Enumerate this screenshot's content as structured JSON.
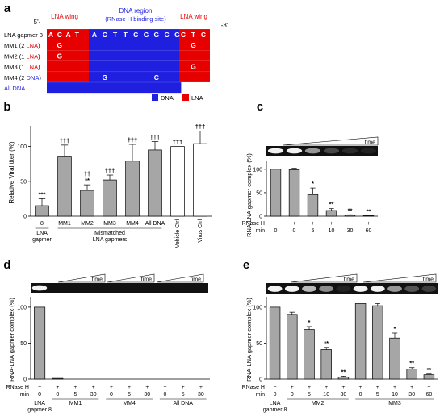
{
  "colors": {
    "dna": "#1f1fe0",
    "lna": "#e60000",
    "bar": "#a6a6a6",
    "white": "#ffffff",
    "axis": "#000000",
    "star": "#000000",
    "redtext": "#e60000",
    "bluetext": "#1f1fe0",
    "gel": "#111111",
    "band": "#f2f2f2"
  },
  "panel_a": {
    "label": "a",
    "five_prime": "5'-",
    "three_prime": "-3'",
    "lna_wing_label": "LNA wing",
    "dna_region_label": "DNA region",
    "dna_region_sub": "(RNase H binding site)",
    "sequence": [
      "A",
      "C",
      "A",
      "T",
      "A",
      "C",
      "T",
      "T",
      "C",
      "G",
      "G",
      "C",
      "G",
      "C",
      "T",
      "C"
    ],
    "rows": [
      {
        "label": "LNA gapmer 8",
        "parts": [
          {
            "t": "LNA gapmer 8",
            "c": "black"
          }
        ],
        "mutations": {}
      },
      {
        "label": "MM1 (2 LNA)",
        "parts": [
          {
            "t": "MM1 (2 ",
            "c": "black"
          },
          {
            "t": "LNA",
            "c": "red"
          },
          {
            "t": ")",
            "c": "black"
          }
        ],
        "mutations": {
          "1": "G",
          "14": "G"
        }
      },
      {
        "label": "MM2 (1 LNA)",
        "parts": [
          {
            "t": "MM2 (1 ",
            "c": "black"
          },
          {
            "t": "LNA",
            "c": "red"
          },
          {
            "t": ")",
            "c": "black"
          }
        ],
        "mutations": {
          "1": "G"
        }
      },
      {
        "label": "MM3 (1 LNA)",
        "parts": [
          {
            "t": "MM3 (1 ",
            "c": "black"
          },
          {
            "t": "LNA",
            "c": "red"
          },
          {
            "t": ")",
            "c": "black"
          }
        ],
        "mutations": {
          "14": "G"
        }
      },
      {
        "label": "MM4 (2 DNA)",
        "parts": [
          {
            "t": "MM4 (2 ",
            "c": "black"
          },
          {
            "t": "DNA",
            "c": "blue"
          },
          {
            "t": ")",
            "c": "black"
          }
        ],
        "mutations": {
          "5": "G",
          "10": "C"
        }
      },
      {
        "label": "All DNA",
        "parts": [
          {
            "t": "All DNA",
            "c": "blue"
          }
        ],
        "mutations": {}
      }
    ],
    "legend": [
      {
        "label": "DNA",
        "color_key": "dna"
      },
      {
        "label": "LNA",
        "color_key": "lna"
      }
    ]
  },
  "chart_data": [
    {
      "panel": "b",
      "type": "bar",
      "ylabel": "Relative Viral titer (%)",
      "ylim": [
        0,
        125
      ],
      "yticks": [
        0,
        50,
        100
      ],
      "categories": [
        "8",
        "MM1",
        "MM2",
        "MM3",
        "MM4",
        "All DNA",
        "Vehicle Ctrl",
        "Virus Ctrl"
      ],
      "values": [
        15,
        85,
        37,
        52,
        79,
        95,
        100,
        104
      ],
      "errors": [
        10,
        17,
        8,
        7,
        24,
        12,
        0,
        18
      ],
      "fills": [
        "bar",
        "bar",
        "bar",
        "bar",
        "bar",
        "bar",
        "white",
        "white"
      ],
      "annotations": [
        [
          "***"
        ],
        [
          "†††"
        ],
        [
          "††",
          "**"
        ],
        [
          "†††"
        ],
        [
          "†††"
        ],
        [
          "†††"
        ],
        [
          "†††"
        ],
        [
          "†††"
        ]
      ],
      "group_labels": [
        {
          "label": "LNA\ngapmer",
          "from": 0,
          "to": 0
        },
        {
          "label": "Mismatched\nLNA gapmers",
          "from": 1,
          "to": 5
        }
      ]
    },
    {
      "panel": "c",
      "type": "bar",
      "ylabel": "RNA-LNA gapmer complex (%)",
      "ylim": [
        0,
        110
      ],
      "yticks": [
        0,
        50,
        100
      ],
      "time_label": "time",
      "categories": [
        "0",
        "0",
        "5",
        "10",
        "30",
        "60"
      ],
      "rnase_h": [
        "−",
        "+",
        "+",
        "+",
        "+",
        "+"
      ],
      "min": [
        "0",
        "0",
        "5",
        "10",
        "30",
        "60"
      ],
      "row_labels": [
        "RNase H",
        "min"
      ],
      "values": [
        100,
        99,
        46,
        12,
        2,
        1
      ],
      "errors": [
        0,
        3,
        14,
        4,
        1,
        0
      ],
      "annotations": [
        [],
        [],
        [
          "*"
        ],
        [
          "**"
        ],
        [
          "**"
        ],
        [
          "**"
        ]
      ]
    },
    {
      "panel": "d",
      "type": "bar",
      "ylabel": "RNA-LNA gapmer complex (%)",
      "ylim": [
        0,
        110
      ],
      "yticks": [
        0,
        50,
        100
      ],
      "time_label": "time",
      "categories": [
        "0",
        "0",
        "5",
        "30",
        "0",
        "5",
        "30",
        "0",
        "5",
        "30"
      ],
      "rnase_h": [
        "−",
        "+",
        "+",
        "+",
        "+",
        "+",
        "+",
        "+",
        "+",
        "+"
      ],
      "min": [
        "0",
        "0",
        "5",
        "30",
        "0",
        "5",
        "30",
        "0",
        "5",
        "30"
      ],
      "row_labels": [
        "RNase H",
        "min"
      ],
      "values": [
        100,
        1,
        0,
        0,
        0,
        0,
        0,
        0,
        0,
        0
      ],
      "errors": [
        0,
        0,
        0,
        0,
        0,
        0,
        0,
        0,
        0,
        0
      ],
      "group_labels": [
        {
          "label": "LNA\ngapmer 8",
          "from": 0,
          "to": 0
        },
        {
          "label": "MM1",
          "from": 1,
          "to": 3
        },
        {
          "label": "MM4",
          "from": 4,
          "to": 6
        },
        {
          "label": "All DNA",
          "from": 7,
          "to": 9
        }
      ]
    },
    {
      "panel": "e",
      "type": "bar",
      "ylabel": "RNA-LNA gapmer complex (%)",
      "ylim": [
        0,
        110
      ],
      "yticks": [
        0,
        50,
        100
      ],
      "time_label": "time",
      "categories": [
        "0",
        "0",
        "5",
        "10",
        "30",
        "0",
        "5",
        "10",
        "30",
        "60"
      ],
      "rnase_h": [
        "−",
        "+",
        "+",
        "+",
        "+",
        "+",
        "+",
        "+",
        "+",
        "+"
      ],
      "min": [
        "0",
        "0",
        "5",
        "10",
        "30",
        "0",
        "5",
        "10",
        "30",
        "60"
      ],
      "row_labels": [
        "RNase H",
        "min"
      ],
      "values": [
        100,
        90,
        69,
        41,
        3,
        105,
        102,
        57,
        14,
        6
      ],
      "errors": [
        0,
        3,
        4,
        3,
        1,
        0,
        3,
        7,
        2,
        1
      ],
      "annotations": [
        [],
        [],
        [
          "*"
        ],
        [
          "**"
        ],
        [
          "**"
        ],
        [],
        [],
        [
          "*"
        ],
        [
          "**"
        ],
        [
          "**"
        ]
      ],
      "group_labels": [
        {
          "label": "LNA\ngapmer 8",
          "from": 0,
          "to": 0
        },
        {
          "label": "MM2",
          "from": 1,
          "to": 4
        },
        {
          "label": "MM3",
          "from": 5,
          "to": 9
        }
      ]
    }
  ]
}
